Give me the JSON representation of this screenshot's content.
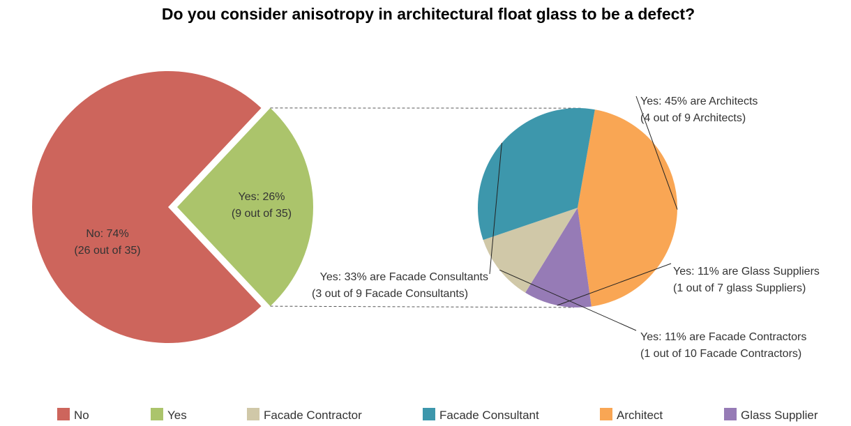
{
  "chart_data": {
    "type": "pie",
    "title": "Do you consider anisotropy in architectural float glass to be a defect?",
    "main_pie": {
      "slices": [
        {
          "name": "No",
          "value": 74,
          "label_line1": "No:  74%",
          "label_line2": "(26 out of 35)",
          "color": "#cd655c"
        },
        {
          "name": "Yes",
          "value": 26,
          "label_line1": "Yes: 26%",
          "label_line2": "(9 out of 35)",
          "color": "#abc46b"
        }
      ]
    },
    "detail_pie": {
      "slices": [
        {
          "name": "Architect",
          "value": 45,
          "label_line1": "Yes: 45% are Architects",
          "label_line2": "(4 out of 9 Architects)",
          "color": "#f9a654"
        },
        {
          "name": "Glass Supplier",
          "value": 11,
          "label_line1": "Yes: 11% are Glass Suppliers",
          "label_line2": "(1 out of 7 glass Suppliers)",
          "color": "#967bb6"
        },
        {
          "name": "Facade Contractor",
          "value": 11,
          "label_line1": "Yes: 11% are Facade Contractors",
          "label_line2": "(1 out of 10 Facade Contractors)",
          "color": "#d0c8a8"
        },
        {
          "name": "Facade Consultant",
          "value": 33,
          "label_line1": "Yes: 33% are Facade Consultants",
          "label_line2": "(3 out of 9 Facade Consultants)",
          "color": "#3d97ac"
        }
      ]
    },
    "legend": {
      "placement": "bottom",
      "items": [
        {
          "name": "No",
          "color": "#cd655c"
        },
        {
          "name": "Yes",
          "color": "#abc46b"
        },
        {
          "name": "Facade Contractor",
          "color": "#d0c8a8"
        },
        {
          "name": "Facade Consultant",
          "color": "#3d97ac"
        },
        {
          "name": "Architect",
          "color": "#f9a654"
        },
        {
          "name": "Glass Supplier",
          "color": "#967bb6"
        }
      ]
    }
  }
}
